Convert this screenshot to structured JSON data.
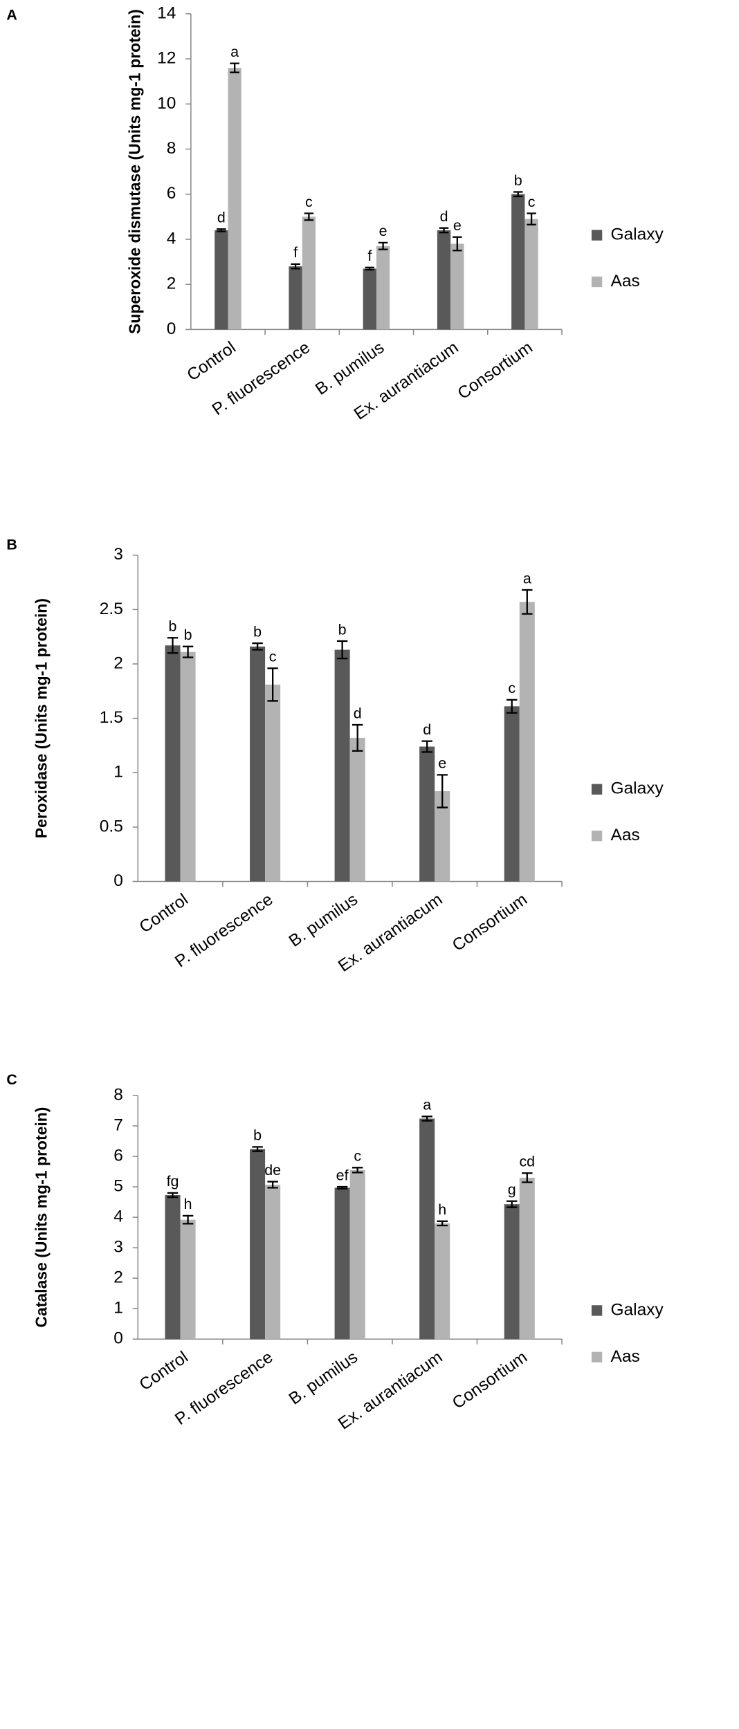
{
  "chart_data": [
    {
      "type": "bar",
      "panel": "A",
      "y_label": "Superoxide dismutase (Units mg-1 protein)",
      "categories": [
        "Control",
        "P. fluorescence",
        "B. pumilus",
        "Ex. aurantiacum",
        "Consortium"
      ],
      "series": [
        {
          "name": "Galaxy",
          "color": "#595959",
          "values": [
            4.4,
            2.8,
            2.7,
            4.4,
            6.0
          ],
          "errors": [
            0.05,
            0.1,
            0.05,
            0.1,
            0.1
          ],
          "annotations": [
            "d",
            "f",
            "f",
            "d",
            "b"
          ]
        },
        {
          "name": "Aas",
          "color": "#b3b3b3",
          "values": [
            11.6,
            5.0,
            3.7,
            3.8,
            4.9
          ],
          "errors": [
            0.2,
            0.15,
            0.15,
            0.3,
            0.25
          ],
          "annotations": [
            "a",
            "c",
            "e",
            "e",
            "c"
          ]
        }
      ],
      "ylim": [
        0,
        14
      ],
      "yticks": [
        0,
        2,
        4,
        6,
        8,
        10,
        12,
        14
      ]
    },
    {
      "type": "bar",
      "panel": "B",
      "y_label": "Peroxidase (Units mg-1 protein)",
      "categories": [
        "Control",
        "P. fluorescence",
        "B. pumilus",
        "Ex. aurantiacum",
        "Consortium"
      ],
      "series": [
        {
          "name": "Galaxy",
          "color": "#595959",
          "values": [
            2.17,
            2.16,
            2.13,
            1.24,
            1.61
          ],
          "errors": [
            0.07,
            0.03,
            0.08,
            0.05,
            0.06
          ],
          "annotations": [
            "b",
            "b",
            "b",
            "d",
            "c"
          ]
        },
        {
          "name": "Aas",
          "color": "#b3b3b3",
          "values": [
            2.11,
            1.81,
            1.32,
            0.83,
            2.57
          ],
          "errors": [
            0.05,
            0.15,
            0.12,
            0.15,
            0.11
          ],
          "annotations": [
            "b",
            "c",
            "d",
            "e",
            "a"
          ]
        }
      ],
      "ylim": [
        0,
        3
      ],
      "yticks": [
        0,
        0.5,
        1,
        1.5,
        2,
        2.5,
        3
      ]
    },
    {
      "type": "bar",
      "panel": "C",
      "y_label": "Catalase (Units mg-1 protein)",
      "categories": [
        "Control",
        "P. fluorescence",
        "B. pumilus",
        "Ex. aurantiacum",
        "Consortium"
      ],
      "series": [
        {
          "name": "Galaxy",
          "color": "#595959",
          "values": [
            4.73,
            6.24,
            4.97,
            7.24,
            4.43
          ],
          "errors": [
            0.07,
            0.07,
            0.03,
            0.07,
            0.1
          ],
          "annotations": [
            "fg",
            "b",
            "ef",
            "a",
            "g"
          ]
        },
        {
          "name": "Aas",
          "color": "#b3b3b3",
          "values": [
            3.92,
            5.07,
            5.55,
            3.8,
            5.3
          ],
          "errors": [
            0.13,
            0.1,
            0.08,
            0.07,
            0.15
          ],
          "annotations": [
            "h",
            "de",
            "c",
            "h",
            "cd"
          ]
        }
      ],
      "ylim": [
        0,
        8
      ],
      "yticks": [
        0,
        1,
        2,
        3,
        4,
        5,
        6,
        7,
        8
      ]
    }
  ]
}
